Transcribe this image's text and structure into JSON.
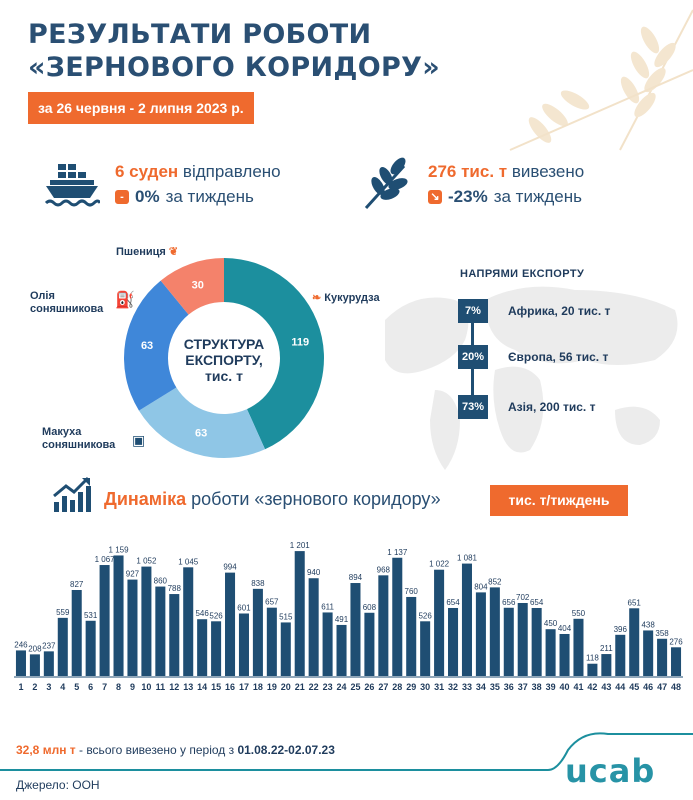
{
  "header": {
    "title_line1": "РЕЗУЛЬТАТИ РОБОТИ",
    "title_line2": "«ЗЕРНОВОГО КОРИДОРУ»",
    "period": "за 26 червня - 2 липня 2023 р."
  },
  "stats": {
    "ships_value": "6 суден",
    "ships_text": "відправлено",
    "ships_change_value": "0%",
    "ships_change_text": "за тиждень",
    "tons_value": "276 тис. т",
    "tons_text": "вивезено",
    "tons_change_value": "-23%",
    "tons_change_text": "за тиждень"
  },
  "structure": {
    "center_line1": "СТРУКТУРА",
    "center_line2": "ЕКСПОРТУ,",
    "center_line3": "тис. т",
    "segments": [
      {
        "name": "Кукурудза",
        "value": 119,
        "color": "#1c8f9e"
      },
      {
        "name": "Макуха соняшникова",
        "value": 63,
        "color": "#8fc6e6"
      },
      {
        "name": "Олія соняшникова",
        "value": 63,
        "color": "#3f87d9"
      },
      {
        "name": "Пшениця",
        "value": 30,
        "color": "#f4826b"
      }
    ],
    "label_wheat": "Пшениця",
    "label_oil_1": "Олія",
    "label_oil_2": "соняшникова",
    "label_corn": "Кукурудза",
    "label_meal_1": "Макуха",
    "label_meal_2": "соняшникова"
  },
  "directions": {
    "title": "НАПРЯМИ ЕКСПОРТУ",
    "items": [
      {
        "pct": "7%",
        "label": "Африка, 20 тис. т"
      },
      {
        "pct": "20%",
        "label": "Європа, 56 тис. т"
      },
      {
        "pct": "73%",
        "label": "Азія, 200 тис. т"
      }
    ]
  },
  "dynamics": {
    "title_bold": "Динаміка",
    "title_rest": "роботи «зернового коридору»",
    "unit": "тис. т/тиждень"
  },
  "chart_data": {
    "type": "bar",
    "categories": [
      "1",
      "2",
      "3",
      "4",
      "5",
      "6",
      "7",
      "8",
      "9",
      "10",
      "11",
      "12",
      "13",
      "14",
      "15",
      "16",
      "17",
      "18",
      "19",
      "20",
      "21",
      "22",
      "23",
      "24",
      "25",
      "26",
      "27",
      "28",
      "29",
      "30",
      "31",
      "32",
      "33",
      "34",
      "35",
      "36",
      "37",
      "38",
      "39",
      "40",
      "41",
      "42",
      "43",
      "44",
      "45",
      "46",
      "47",
      "48"
    ],
    "values": [
      246,
      208,
      237,
      559,
      827,
      531,
      1067,
      1159,
      927,
      1052,
      860,
      788,
      1045,
      546,
      526,
      994,
      601,
      838,
      657,
      515,
      1201,
      940,
      611,
      491,
      894,
      608,
      968,
      1137,
      760,
      526,
      1022,
      654,
      1081,
      804,
      852,
      656,
      702,
      654,
      450,
      404,
      550,
      118,
      211,
      396,
      651,
      438,
      358,
      276
    ],
    "value_labels": [
      "246",
      "208",
      "237",
      "559",
      "827",
      "531",
      "1 067",
      "1 159",
      "927",
      "1 052",
      "860",
      "788",
      "1 045",
      "546",
      "526",
      "994",
      "601",
      "838",
      "657",
      "515",
      "1 201",
      "940",
      "611",
      "491",
      "894",
      "608",
      "968",
      "1 137",
      "760",
      "526",
      "1 022",
      "654",
      "1 081",
      "804",
      "852",
      "656",
      "702",
      "654",
      "450",
      "404",
      "550",
      "118",
      "211",
      "396",
      "651",
      "438",
      "358",
      "276"
    ],
    "ylim": [
      0,
      1250
    ],
    "bar_color": "#1f4e73"
  },
  "footer": {
    "total_value": "32,8 млн т",
    "total_text": " - всього вивезено у період з ",
    "total_period": "01.08.22-02.07.23",
    "source": "Джерело: ООН",
    "logo": "ucab"
  }
}
